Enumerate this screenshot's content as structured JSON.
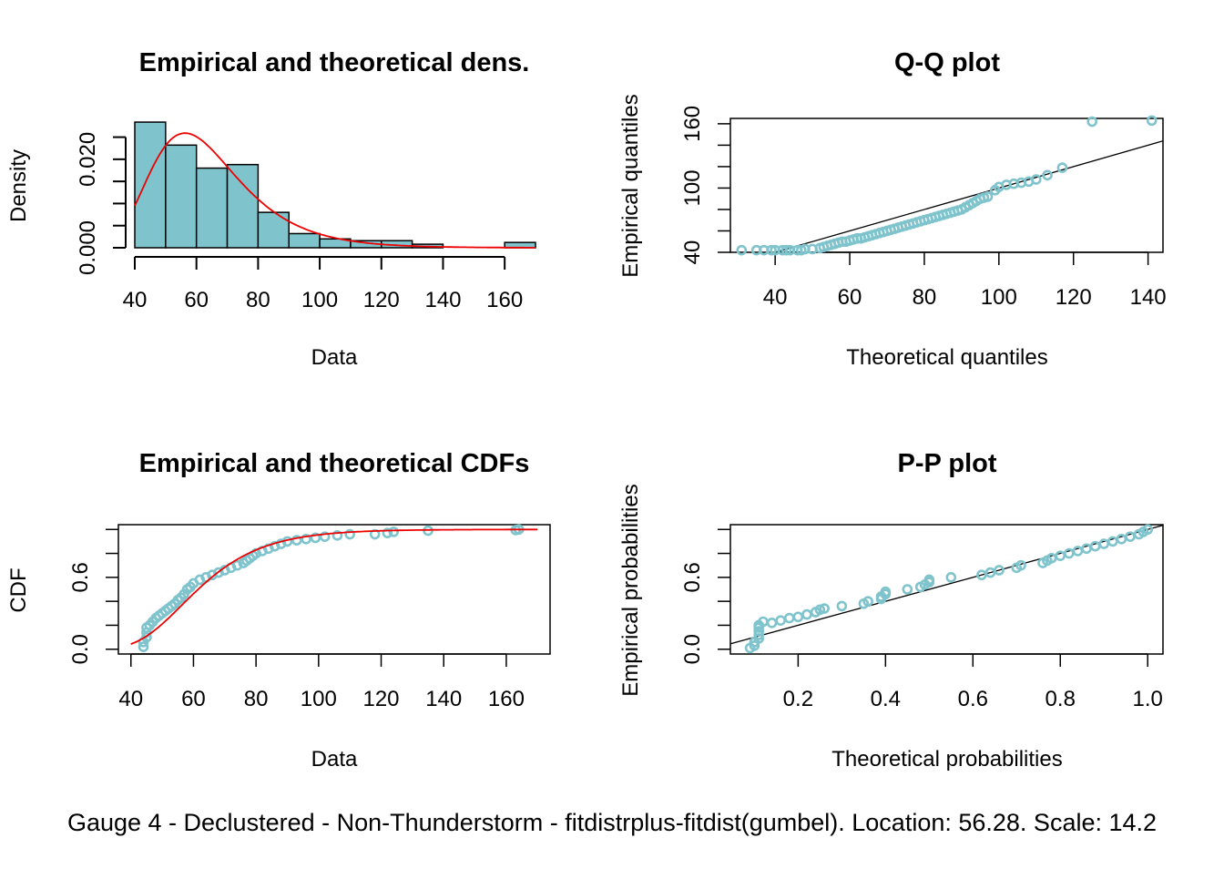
{
  "colors": {
    "fill": "#7fc4cd",
    "point": "#7fc4cd",
    "curve": "#ee0000",
    "line": "#000000"
  },
  "caption": "Gauge 4 - Declustered - Non-Thunderstorm - fitdistrplus-fitdist(gumbel). Location: 56.28. Scale: 14.2",
  "chart_data": [
    {
      "type": "bar",
      "title": "Empirical and theoretical dens.",
      "xlabel": "Data",
      "ylabel": "Density",
      "xlim": [
        40,
        170
      ],
      "ylim": [
        0,
        0.028
      ],
      "xticks": [
        "40",
        "60",
        "80",
        "100",
        "120",
        "140",
        "160"
      ],
      "yticks": [
        "0.000",
        "0.020"
      ],
      "bins": [
        {
          "from": 40,
          "to": 50,
          "density": 0.0284
        },
        {
          "from": 50,
          "to": 60,
          "density": 0.0232
        },
        {
          "from": 60,
          "to": 70,
          "density": 0.018
        },
        {
          "from": 70,
          "to": 80,
          "density": 0.0188
        },
        {
          "from": 80,
          "to": 90,
          "density": 0.008
        },
        {
          "from": 90,
          "to": 100,
          "density": 0.0032
        },
        {
          "from": 100,
          "to": 110,
          "density": 0.002
        },
        {
          "from": 110,
          "to": 120,
          "density": 0.0016
        },
        {
          "from": 120,
          "to": 130,
          "density": 0.0016
        },
        {
          "from": 130,
          "to": 140,
          "density": 0.0008
        },
        {
          "from": 140,
          "to": 150,
          "density": 0.0
        },
        {
          "from": 150,
          "to": 160,
          "density": 0.0
        },
        {
          "from": 160,
          "to": 170,
          "density": 0.0012
        }
      ],
      "curve": {
        "distribution": "gumbel",
        "location": 56.28,
        "scale": 14.2
      }
    },
    {
      "type": "scatter",
      "title": "Q-Q plot",
      "xlabel": "Theoretical quantiles",
      "ylabel": "Empirical quantiles",
      "xlim": [
        28,
        144
      ],
      "ylim": [
        40,
        165
      ],
      "xticks": [
        "40",
        "60",
        "80",
        "100",
        "120",
        "140"
      ],
      "yticks": [
        "40",
        "100",
        "160"
      ],
      "points": [
        [
          31,
          42
        ],
        [
          35,
          42
        ],
        [
          37,
          42
        ],
        [
          39,
          42
        ],
        [
          40,
          42
        ],
        [
          42,
          42
        ],
        [
          43,
          42
        ],
        [
          44,
          42
        ],
        [
          46,
          42
        ],
        [
          47,
          42
        ],
        [
          48,
          43
        ],
        [
          50,
          43
        ],
        [
          52,
          44
        ],
        [
          53,
          45
        ],
        [
          54,
          46
        ],
        [
          55,
          47
        ],
        [
          56,
          48
        ],
        [
          57,
          49
        ],
        [
          58,
          50
        ],
        [
          59,
          50
        ],
        [
          60,
          51
        ],
        [
          61,
          52
        ],
        [
          62,
          53
        ],
        [
          63,
          53
        ],
        [
          64,
          54
        ],
        [
          65,
          55
        ],
        [
          66,
          56
        ],
        [
          67,
          57
        ],
        [
          68,
          58
        ],
        [
          69,
          59
        ],
        [
          70,
          60
        ],
        [
          71,
          61
        ],
        [
          72,
          62
        ],
        [
          73,
          63
        ],
        [
          74,
          64
        ],
        [
          75,
          65
        ],
        [
          76,
          66
        ],
        [
          77,
          67
        ],
        [
          78,
          68
        ],
        [
          79,
          69
        ],
        [
          80,
          70
        ],
        [
          81,
          71
        ],
        [
          82,
          72
        ],
        [
          83,
          73
        ],
        [
          84,
          74
        ],
        [
          85,
          75
        ],
        [
          86,
          76
        ],
        [
          87,
          77
        ],
        [
          88,
          78
        ],
        [
          89,
          79
        ],
        [
          90,
          80
        ],
        [
          91,
          82
        ],
        [
          92,
          84
        ],
        [
          93,
          86
        ],
        [
          94,
          88
        ],
        [
          95,
          90
        ],
        [
          96,
          91
        ],
        [
          97,
          92
        ],
        [
          99,
          98
        ],
        [
          100,
          101
        ],
        [
          102,
          103
        ],
        [
          104,
          104
        ],
        [
          106,
          105
        ],
        [
          108,
          106
        ],
        [
          110,
          108
        ],
        [
          113,
          112
        ],
        [
          117,
          119
        ],
        [
          125,
          162
        ],
        [
          141,
          163
        ]
      ],
      "reference_line": {
        "slope": 1,
        "intercept": 0
      }
    },
    {
      "type": "line",
      "title": "Empirical and theoretical CDFs",
      "xlabel": "Data",
      "ylabel": "CDF",
      "xlim": [
        40,
        170
      ],
      "ylim": [
        0,
        1
      ],
      "xticks": [
        "40",
        "60",
        "80",
        "100",
        "120",
        "140",
        "160"
      ],
      "yticks": [
        "0.0",
        "0.6"
      ],
      "points": [
        [
          44,
          0.02
        ],
        [
          44,
          0.06
        ],
        [
          45,
          0.1
        ],
        [
          45,
          0.14
        ],
        [
          45,
          0.18
        ],
        [
          46,
          0.2
        ],
        [
          47,
          0.23
        ],
        [
          48,
          0.26
        ],
        [
          49,
          0.28
        ],
        [
          50,
          0.3
        ],
        [
          51,
          0.32
        ],
        [
          52,
          0.34
        ],
        [
          53,
          0.36
        ],
        [
          54,
          0.38
        ],
        [
          55,
          0.41
        ],
        [
          56,
          0.43
        ],
        [
          57,
          0.46
        ],
        [
          58,
          0.5
        ],
        [
          59,
          0.52
        ],
        [
          60,
          0.55
        ],
        [
          62,
          0.58
        ],
        [
          64,
          0.6
        ],
        [
          66,
          0.62
        ],
        [
          68,
          0.64
        ],
        [
          70,
          0.66
        ],
        [
          72,
          0.68
        ],
        [
          74,
          0.7
        ],
        [
          76,
          0.72
        ],
        [
          77,
          0.74
        ],
        [
          78,
          0.76
        ],
        [
          79,
          0.78
        ],
        [
          80,
          0.8
        ],
        [
          82,
          0.82
        ],
        [
          84,
          0.84
        ],
        [
          86,
          0.86
        ],
        [
          88,
          0.88
        ],
        [
          90,
          0.9
        ],
        [
          93,
          0.91
        ],
        [
          96,
          0.92
        ],
        [
          99,
          0.93
        ],
        [
          102,
          0.94
        ],
        [
          106,
          0.95
        ],
        [
          110,
          0.96
        ],
        [
          118,
          0.96
        ],
        [
          122,
          0.97
        ],
        [
          124,
          0.98
        ],
        [
          135,
          0.99
        ],
        [
          163,
          0.995
        ],
        [
          164,
          1.0
        ]
      ],
      "curve": {
        "distribution": "gumbel",
        "location": 56.28,
        "scale": 14.2
      }
    },
    {
      "type": "scatter",
      "title": "P-P plot",
      "xlabel": "Theoretical probabilities",
      "ylabel": "Empirical probabilities",
      "xlim": [
        0.05,
        1.02
      ],
      "ylim": [
        0,
        1.0
      ],
      "xticks": [
        "0.2",
        "0.4",
        "0.6",
        "0.8",
        "1.0"
      ],
      "yticks": [
        "0.0",
        "0.6"
      ],
      "points": [
        [
          0.09,
          0.01
        ],
        [
          0.1,
          0.03
        ],
        [
          0.1,
          0.06
        ],
        [
          0.11,
          0.09
        ],
        [
          0.11,
          0.12
        ],
        [
          0.11,
          0.15
        ],
        [
          0.11,
          0.18
        ],
        [
          0.11,
          0.2
        ],
        [
          0.12,
          0.23
        ],
        [
          0.14,
          0.22
        ],
        [
          0.16,
          0.24
        ],
        [
          0.18,
          0.26
        ],
        [
          0.2,
          0.27
        ],
        [
          0.22,
          0.29
        ],
        [
          0.24,
          0.31
        ],
        [
          0.25,
          0.33
        ],
        [
          0.26,
          0.34
        ],
        [
          0.3,
          0.36
        ],
        [
          0.35,
          0.38
        ],
        [
          0.36,
          0.4
        ],
        [
          0.39,
          0.42
        ],
        [
          0.39,
          0.44
        ],
        [
          0.4,
          0.46
        ],
        [
          0.4,
          0.48
        ],
        [
          0.45,
          0.5
        ],
        [
          0.48,
          0.52
        ],
        [
          0.49,
          0.54
        ],
        [
          0.5,
          0.56
        ],
        [
          0.5,
          0.58
        ],
        [
          0.55,
          0.6
        ],
        [
          0.62,
          0.62
        ],
        [
          0.64,
          0.64
        ],
        [
          0.66,
          0.66
        ],
        [
          0.7,
          0.68
        ],
        [
          0.71,
          0.7
        ],
        [
          0.76,
          0.72
        ],
        [
          0.77,
          0.74
        ],
        [
          0.78,
          0.76
        ],
        [
          0.8,
          0.78
        ],
        [
          0.82,
          0.8
        ],
        [
          0.84,
          0.82
        ],
        [
          0.86,
          0.84
        ],
        [
          0.88,
          0.86
        ],
        [
          0.9,
          0.88
        ],
        [
          0.92,
          0.9
        ],
        [
          0.94,
          0.92
        ],
        [
          0.96,
          0.94
        ],
        [
          0.98,
          0.96
        ],
        [
          0.99,
          0.98
        ],
        [
          1.0,
          1.0
        ]
      ],
      "reference_line": {
        "slope": 1,
        "intercept": 0
      }
    }
  ]
}
